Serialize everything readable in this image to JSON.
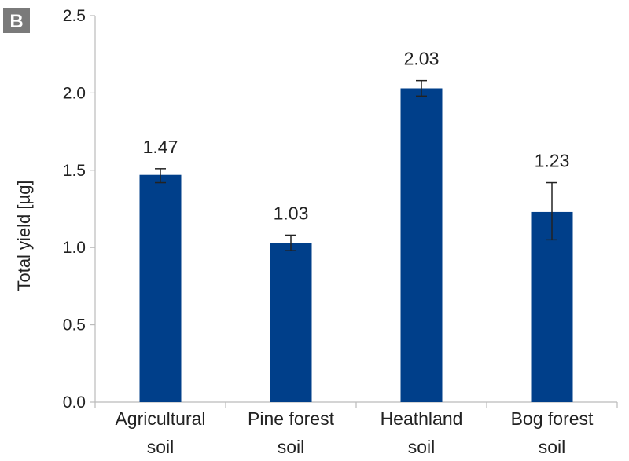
{
  "panel_label": "B",
  "colors": {
    "bar": "#003f8a",
    "axis": "#bbbbbb",
    "error_bar": "#222222",
    "panel_bg": "#7a7a7a"
  },
  "chart_data": {
    "type": "bar",
    "ylabel": "Total yield [µg]",
    "ylim": [
      0,
      2.5
    ],
    "yticks": [
      "0.0",
      "0.5",
      "1.0",
      "1.5",
      "2.0",
      "2.5"
    ],
    "grid": false,
    "categories": [
      [
        "Agricultural",
        "soil"
      ],
      [
        "Pine forest",
        "soil"
      ],
      [
        "Heathland",
        "soil"
      ],
      [
        "Bog forest",
        "soil"
      ]
    ],
    "values": [
      1.47,
      1.03,
      2.03,
      1.23
    ],
    "data_labels": [
      "1.47",
      "1.03",
      "2.03",
      "1.23"
    ],
    "error": [
      {
        "low": 1.42,
        "high": 1.51
      },
      {
        "low": 0.98,
        "high": 1.08
      },
      {
        "low": 1.98,
        "high": 2.08
      },
      {
        "low": 1.05,
        "high": 1.42
      }
    ]
  }
}
